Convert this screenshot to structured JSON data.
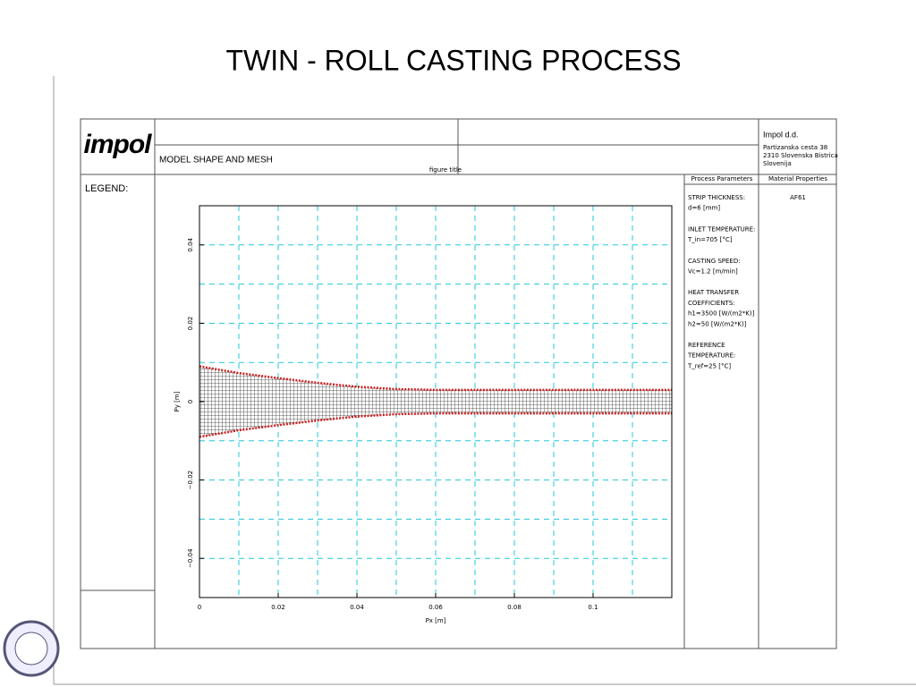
{
  "slide_title": "TWIN - ROLL CASTING PROCESS",
  "sheet": {
    "logo": "impol",
    "figure_title": "MODEL SHAPE AND MESH",
    "figure_title_caption": "figure title",
    "legend_label": "LEGEND:",
    "company": "Impol d.d.",
    "address": [
      "Partizanska cesta 38",
      "2310 Slovenska Bistrica",
      "Slovenija"
    ],
    "process_header": "Process Parameters",
    "material_header": "Material Properties",
    "material": "AF61",
    "parameters": [
      [
        "STRIP THICKNESS:",
        "d=6 [mm]"
      ],
      [
        "INLET TEMPERATURE:",
        "T_in=705 [°C]"
      ],
      [
        "CASTING SPEED:",
        "Vc=1.2 [m/min]"
      ],
      [
        "HEAT TRANSFER",
        "COEFFICIENTS:",
        "h1=3500 [W/(m2*K)]",
        "h2=50 [W/(m2*K)]"
      ],
      [
        "REFERENCE",
        "TEMPERATURE:",
        "T_ref=25 [°C]"
      ]
    ]
  },
  "chart_data": {
    "type": "line",
    "x_label": "Px [m]",
    "y_label": "Py [m]",
    "xlim": [
      0,
      0.12
    ],
    "ylim": [
      -0.05,
      0.05
    ],
    "xticks": [
      0,
      0.02,
      0.04,
      0.06,
      0.08,
      0.1
    ],
    "yticks": [
      {
        "value": -0.04,
        "label": "−0.04"
      },
      {
        "value": -0.02,
        "label": "−0.02"
      },
      0,
      0.02,
      0.04
    ],
    "xgrid": [
      0.01,
      0.02,
      0.03,
      0.04,
      0.05,
      0.06,
      0.07,
      0.08,
      0.09,
      0.1,
      0.11
    ],
    "ygrid": [
      -0.04,
      -0.03,
      -0.02,
      -0.01,
      0,
      0.01,
      0.02,
      0.03,
      0.04
    ],
    "grid_color": "#22c8d8",
    "x": [
      0,
      0.01,
      0.02,
      0.03,
      0.04,
      0.05,
      0.06,
      0.12
    ],
    "series": [
      {
        "color": "#cc2222",
        "values": [
          0.009,
          0.0073,
          0.006,
          0.0048,
          0.0038,
          0.0032,
          0.003,
          0.003
        ]
      },
      {
        "color": "#cc2222",
        "values": [
          -0.009,
          -0.0073,
          -0.006,
          -0.0048,
          -0.0038,
          -0.0032,
          -0.003,
          -0.003
        ]
      }
    ]
  }
}
